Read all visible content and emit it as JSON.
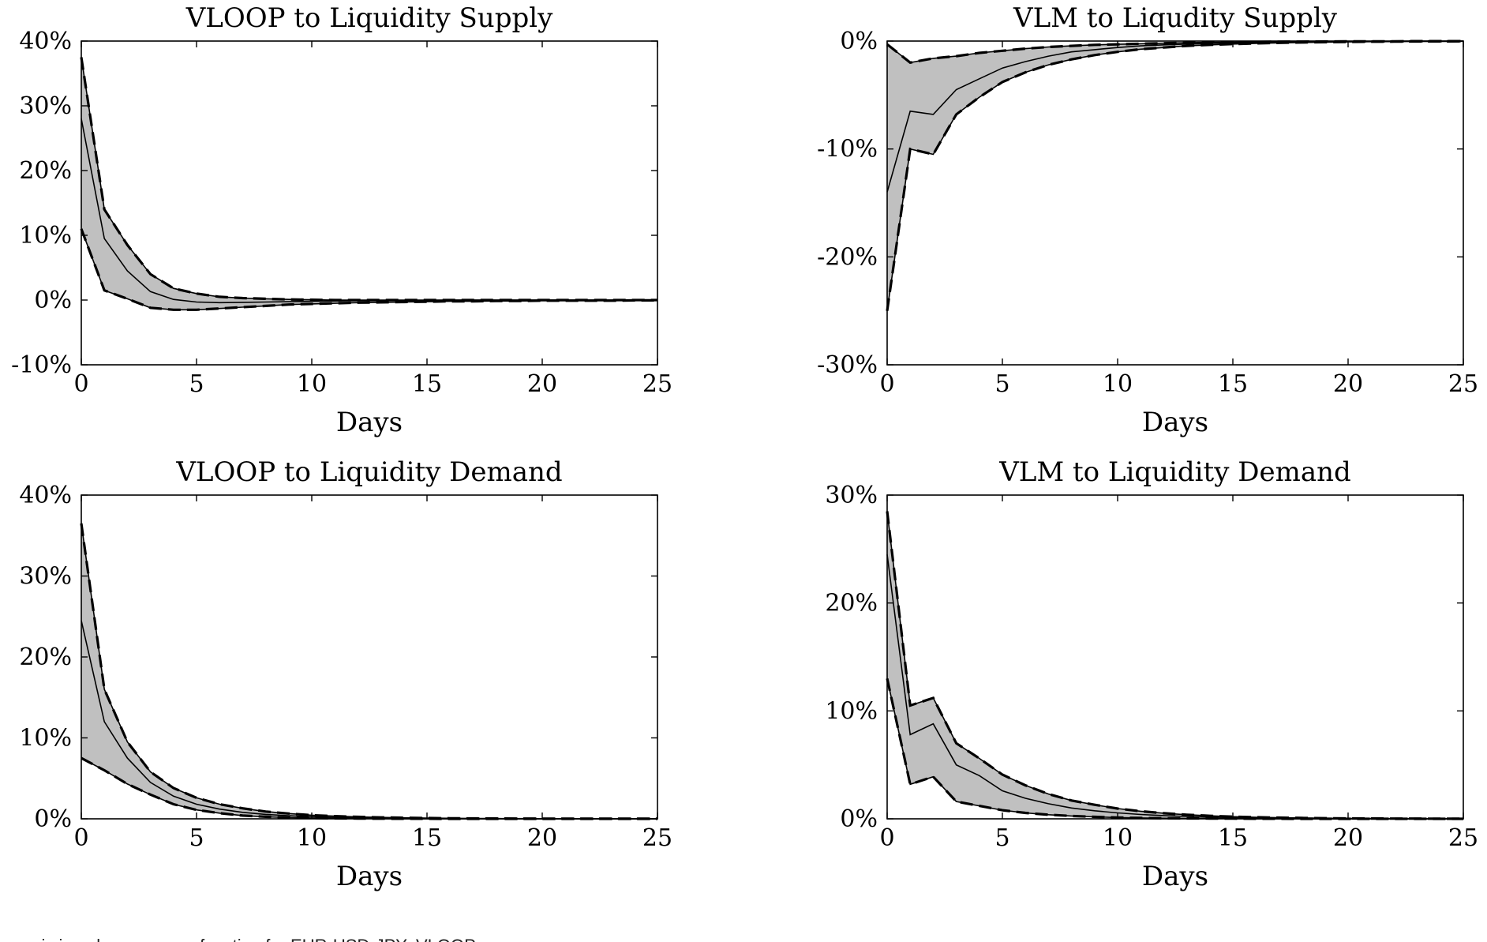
{
  "chart_data": [
    {
      "type": "area",
      "title": "VLOOP to Liquidity Supply",
      "xlabel": "Days",
      "ylabel": "",
      "xlim": [
        0,
        25
      ],
      "ylim": [
        -10,
        40
      ],
      "x_ticks": [
        0,
        5,
        10,
        15,
        20,
        25
      ],
      "y_ticks": [
        -10,
        0,
        10,
        20,
        30,
        40
      ],
      "y_tick_labels": [
        "-10%",
        "0%",
        "10%",
        "20%",
        "30%",
        "40%"
      ],
      "grid": false,
      "x": [
        0,
        1,
        2,
        3,
        4,
        5,
        6,
        7,
        8,
        9,
        10,
        11,
        12,
        13,
        14,
        15,
        16,
        17,
        18,
        19,
        20,
        21,
        22,
        23,
        24,
        25
      ],
      "series": [
        {
          "role": "upper_band",
          "values": [
            37.5,
            14,
            8.5,
            4,
            1.8,
            1,
            0.5,
            0.3,
            0.2,
            0.1,
            0.05,
            0,
            0,
            0,
            0,
            0,
            0,
            0,
            0,
            0,
            0,
            0,
            0,
            0,
            0,
            0
          ]
        },
        {
          "role": "estimate",
          "values": [
            28,
            9.5,
            4.5,
            1.3,
            0.1,
            -0.3,
            -0.4,
            -0.35,
            -0.3,
            -0.25,
            -0.2,
            -0.15,
            -0.1,
            -0.1,
            -0.05,
            -0.05,
            0,
            0,
            0,
            0,
            0,
            0,
            0,
            0,
            0,
            0
          ]
        },
        {
          "role": "lower_band",
          "values": [
            11,
            1.5,
            0.2,
            -1.2,
            -1.5,
            -1.5,
            -1.3,
            -1.1,
            -0.9,
            -0.7,
            -0.6,
            -0.5,
            -0.4,
            -0.35,
            -0.3,
            -0.25,
            -0.2,
            -0.2,
            -0.15,
            -0.15,
            -0.1,
            -0.1,
            -0.1,
            -0.1,
            -0.05,
            -0.05
          ]
        }
      ]
    },
    {
      "type": "area",
      "title": "VLM to Liqudity Supply",
      "xlabel": "Days",
      "ylabel": "",
      "xlim": [
        0,
        25
      ],
      "ylim": [
        -30,
        0
      ],
      "x_ticks": [
        0,
        5,
        10,
        15,
        20,
        25
      ],
      "y_ticks": [
        -30,
        -20,
        -10,
        0
      ],
      "y_tick_labels": [
        "-30%",
        "-20%",
        "-10%",
        "0%"
      ],
      "grid": false,
      "x": [
        0,
        1,
        2,
        3,
        4,
        5,
        6,
        7,
        8,
        9,
        10,
        11,
        12,
        13,
        14,
        15,
        16,
        17,
        18,
        19,
        20,
        21,
        22,
        23,
        24,
        25
      ],
      "series": [
        {
          "role": "upper_band",
          "values": [
            -0.3,
            -2,
            -1.6,
            -1.4,
            -1.1,
            -0.9,
            -0.7,
            -0.55,
            -0.45,
            -0.35,
            -0.3,
            -0.25,
            -0.2,
            -0.15,
            -0.12,
            -0.1,
            -0.08,
            -0.06,
            -0.05,
            -0.04,
            -0.03,
            -0.02,
            -0.02,
            -0.01,
            -0.01,
            -0.01
          ]
        },
        {
          "role": "estimate",
          "values": [
            -14,
            -6.5,
            -6.8,
            -4.5,
            -3.5,
            -2.5,
            -1.9,
            -1.4,
            -1,
            -0.8,
            -0.6,
            -0.45,
            -0.35,
            -0.28,
            -0.22,
            -0.17,
            -0.13,
            -0.1,
            -0.08,
            -0.06,
            -0.05,
            -0.04,
            -0.03,
            -0.02,
            -0.02,
            -0.01
          ]
        },
        {
          "role": "lower_band",
          "values": [
            -25,
            -10,
            -10.5,
            -6.8,
            -5.2,
            -3.8,
            -2.9,
            -2.2,
            -1.7,
            -1.3,
            -1,
            -0.75,
            -0.6,
            -0.45,
            -0.35,
            -0.28,
            -0.22,
            -0.17,
            -0.13,
            -0.1,
            -0.08,
            -0.06,
            -0.05,
            -0.04,
            -0.03,
            -0.02
          ]
        }
      ]
    },
    {
      "type": "area",
      "title": "VLOOP to Liquidity Demand",
      "xlabel": "Days",
      "ylabel": "",
      "xlim": [
        0,
        25
      ],
      "ylim": [
        0,
        40
      ],
      "x_ticks": [
        0,
        5,
        10,
        15,
        20,
        25
      ],
      "y_ticks": [
        0,
        10,
        20,
        30,
        40
      ],
      "y_tick_labels": [
        "0%",
        "10%",
        "20%",
        "30%",
        "40%"
      ],
      "grid": false,
      "x": [
        0,
        1,
        2,
        3,
        4,
        5,
        6,
        7,
        8,
        9,
        10,
        11,
        12,
        13,
        14,
        15,
        16,
        17,
        18,
        19,
        20,
        21,
        22,
        23,
        24,
        25
      ],
      "series": [
        {
          "role": "upper_band",
          "values": [
            36.5,
            16,
            9.5,
            5.8,
            3.8,
            2.6,
            1.8,
            1.3,
            0.9,
            0.65,
            0.45,
            0.33,
            0.24,
            0.18,
            0.13,
            0.1,
            0.07,
            0.05,
            0.04,
            0.03,
            0.02,
            0.02,
            0.01,
            0.01,
            0.01,
            0.01
          ]
        },
        {
          "role": "estimate",
          "values": [
            24.5,
            12,
            7.5,
            4.5,
            2.8,
            1.8,
            1.2,
            0.8,
            0.55,
            0.38,
            0.26,
            0.18,
            0.13,
            0.09,
            0.06,
            0.04,
            0.03,
            0.02,
            0.015,
            0.01,
            0.01,
            0,
            0,
            0,
            0,
            0
          ]
        },
        {
          "role": "lower_band",
          "values": [
            7.5,
            6,
            4.3,
            3,
            1.8,
            1.1,
            0.7,
            0.4,
            0.25,
            0.15,
            0.1,
            0.06,
            0.04,
            0.02,
            0.01,
            0.01,
            0,
            0,
            0,
            0,
            0,
            0,
            0,
            0,
            0,
            0
          ]
        }
      ]
    },
    {
      "type": "area",
      "title": "VLM to Liquidity Demand",
      "xlabel": "Days",
      "ylabel": "",
      "xlim": [
        0,
        25
      ],
      "ylim": [
        0,
        30
      ],
      "x_ticks": [
        0,
        5,
        10,
        15,
        20,
        25
      ],
      "y_ticks": [
        0,
        10,
        20,
        30
      ],
      "y_tick_labels": [
        "0%",
        "10%",
        "20%",
        "30%"
      ],
      "grid": false,
      "x": [
        0,
        1,
        2,
        3,
        4,
        5,
        6,
        7,
        8,
        9,
        10,
        11,
        12,
        13,
        14,
        15,
        16,
        17,
        18,
        19,
        20,
        21,
        22,
        23,
        24,
        25
      ],
      "series": [
        {
          "role": "upper_band",
          "values": [
            28.5,
            10.5,
            11.2,
            7,
            5.6,
            4.1,
            3.1,
            2.3,
            1.7,
            1.3,
            0.95,
            0.7,
            0.52,
            0.38,
            0.28,
            0.2,
            0.15,
            0.11,
            0.08,
            0.06,
            0.04,
            0.03,
            0.02,
            0.02,
            0.01,
            0.01
          ]
        },
        {
          "role": "estimate",
          "values": [
            24.5,
            7.8,
            8.8,
            5,
            4,
            2.6,
            1.9,
            1.4,
            1,
            0.75,
            0.55,
            0.4,
            0.3,
            0.22,
            0.16,
            0.12,
            0.09,
            0.06,
            0.05,
            0.03,
            0.02,
            0.02,
            0.01,
            0.01,
            0.01,
            0
          ]
        },
        {
          "role": "lower_band",
          "values": [
            13,
            3.2,
            3.9,
            1.6,
            1.2,
            0.8,
            0.55,
            0.38,
            0.26,
            0.18,
            0.12,
            0.08,
            0.05,
            0.04,
            0.03,
            0.02,
            0.01,
            0.01,
            0,
            0,
            0,
            0,
            0,
            0,
            0,
            0
          ]
        }
      ]
    }
  ],
  "caption": {
    "text": "…amic impulse response function for EUR-USD-JPY: VLOOP…"
  }
}
